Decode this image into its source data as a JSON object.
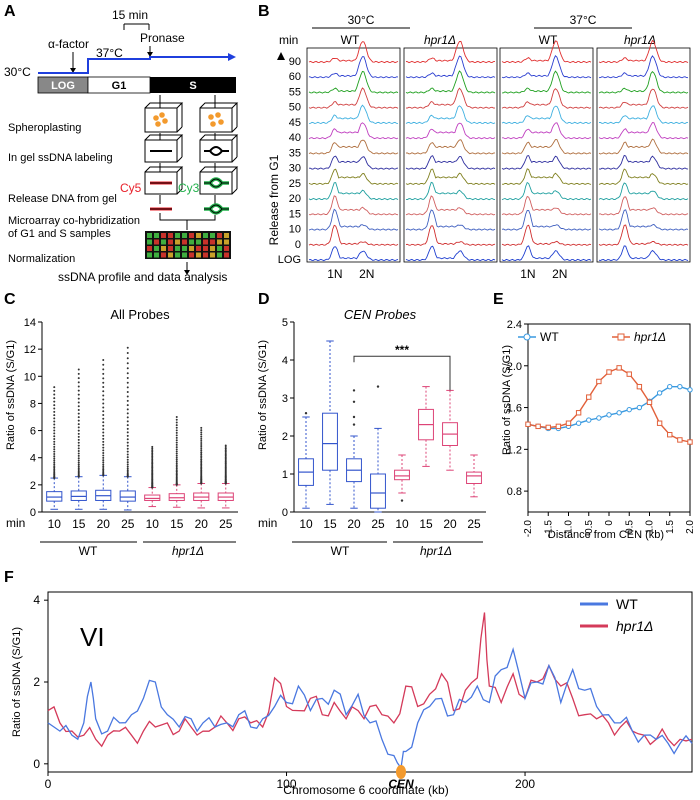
{
  "panelA": {
    "letter": "A",
    "time15": "15 min",
    "alpha": "α-factor",
    "pronase": "Pronase",
    "temp37": "37°C",
    "temp30": "30°C",
    "log": "LOG",
    "g1": "G1",
    "s": "S",
    "steps": [
      "Spheroplasting",
      "In gel ssDNA labeling",
      "Release DNA from gel",
      "Microarray co-hybridization",
      "of G1 and S samples",
      "Normalization"
    ],
    "cy5": "Cy5",
    "cy3": "Cy3",
    "final": "ssDNA profile and data analysis",
    "colors": {
      "cy5": "#e8202a",
      "cy3": "#22b14c",
      "blue": "#1f3fdd",
      "cells": "#f39a2d"
    }
  },
  "panelB": {
    "letter": "B",
    "temps": [
      "30°C",
      "37°C"
    ],
    "strains": [
      "WT",
      "hpr1Δ",
      "WT",
      "hpr1Δ"
    ],
    "min": "min",
    "release": "Release from G1",
    "rows": [
      "90",
      "60",
      "55",
      "50",
      "45",
      "40",
      "35",
      "30",
      "25",
      "20",
      "15",
      "10",
      "0",
      "LOG"
    ],
    "rowColors": [
      "#e03030",
      "#2c3fd0",
      "#20a020",
      "#d04040",
      "#3fb0e0",
      "#c040c0",
      "#b07040",
      "#2f2f9f",
      "#808020",
      "#20a0a0",
      "#d06060",
      "#4060c0",
      "#d03030",
      "#2040d0"
    ],
    "peaks": [
      "1N",
      "2N"
    ]
  },
  "chart_data": [
    {
      "type": "box",
      "panel": "C",
      "title": "All Probes",
      "ylabel": "Ratio of ssDNA (S/G1)",
      "ylim": [
        0,
        14
      ],
      "yticks": [
        0,
        2,
        4,
        6,
        8,
        10,
        12,
        14
      ],
      "xprefix": "min",
      "categories": [
        "10",
        "15",
        "20",
        "25",
        "10",
        "15",
        "20",
        "25"
      ],
      "groups": [
        "WT",
        "hpr1Δ"
      ],
      "colors": [
        "#3355cc",
        "#3355cc",
        "#3355cc",
        "#3355cc",
        "#dd4477",
        "#dd4477",
        "#dd4477",
        "#dd4477"
      ],
      "boxes": [
        {
          "q1": 0.8,
          "median": 1.1,
          "q3": 1.5,
          "lo": 0.2,
          "hi": 2.5,
          "outTop": 9.2
        },
        {
          "q1": 0.85,
          "median": 1.15,
          "q3": 1.55,
          "lo": 0.2,
          "hi": 2.6,
          "outTop": 10.5
        },
        {
          "q1": 0.85,
          "median": 1.2,
          "q3": 1.6,
          "lo": 0.2,
          "hi": 2.7,
          "outTop": 11.2
        },
        {
          "q1": 0.8,
          "median": 1.1,
          "q3": 1.55,
          "lo": 0.15,
          "hi": 2.6,
          "outTop": 12.1
        },
        {
          "q1": 0.85,
          "median": 1.0,
          "q3": 1.25,
          "lo": 0.4,
          "hi": 1.8,
          "outTop": 4.8
        },
        {
          "q1": 0.85,
          "median": 1.05,
          "q3": 1.35,
          "lo": 0.35,
          "hi": 2.0,
          "outTop": 7.0
        },
        {
          "q1": 0.85,
          "median": 1.1,
          "q3": 1.4,
          "lo": 0.3,
          "hi": 2.1,
          "outTop": 6.2
        },
        {
          "q1": 0.85,
          "median": 1.1,
          "q3": 1.4,
          "lo": 0.3,
          "hi": 2.1,
          "outTop": 4.9
        }
      ]
    },
    {
      "type": "box",
      "panel": "D",
      "title": "CEN Probes",
      "ylabel": "Ratio of ssDNA (S/G1)",
      "ylim": [
        0,
        5
      ],
      "yticks": [
        0,
        1,
        2,
        3,
        4,
        5
      ],
      "xprefix": "min",
      "categories": [
        "10",
        "15",
        "20",
        "25",
        "10",
        "15",
        "20",
        "25"
      ],
      "groups": [
        "WT",
        "hpr1Δ"
      ],
      "significance": "***",
      "colors": [
        "#3355cc",
        "#3355cc",
        "#3355cc",
        "#3355cc",
        "#dd4477",
        "#dd4477",
        "#dd4477",
        "#dd4477"
      ],
      "boxes": [
        {
          "q1": 0.7,
          "median": 1.05,
          "q3": 1.4,
          "lo": 0.1,
          "hi": 2.5,
          "out": [
            2.6
          ]
        },
        {
          "q1": 1.1,
          "median": 1.8,
          "q3": 2.6,
          "lo": 0.2,
          "hi": 4.5,
          "out": []
        },
        {
          "q1": 0.8,
          "median": 1.1,
          "q3": 1.4,
          "lo": 0.1,
          "hi": 2.0,
          "out": [
            2.3,
            2.5,
            2.9,
            3.2
          ]
        },
        {
          "q1": 0.1,
          "median": 0.5,
          "q3": 1.0,
          "lo": 0.0,
          "hi": 2.2,
          "out": [
            3.3
          ]
        },
        {
          "q1": 0.85,
          "median": 0.95,
          "q3": 1.1,
          "lo": 0.5,
          "hi": 1.5,
          "out": [
            0.3
          ]
        },
        {
          "q1": 1.9,
          "median": 2.3,
          "q3": 2.7,
          "lo": 1.2,
          "hi": 3.3,
          "out": []
        },
        {
          "q1": 1.75,
          "median": 2.05,
          "q3": 2.35,
          "lo": 1.1,
          "hi": 3.2,
          "out": []
        },
        {
          "q1": 0.75,
          "median": 0.95,
          "q3": 1.05,
          "lo": 0.4,
          "hi": 1.5,
          "out": []
        }
      ]
    },
    {
      "type": "line",
      "panel": "E",
      "ylabel": "Ratio of ssDNA (S/G1)",
      "xlabel": "Distance from CEN (kb)",
      "ylim": [
        0.6,
        2.4
      ],
      "yticks": [
        0.8,
        1.2,
        1.6,
        2.0,
        2.4
      ],
      "xlim": [
        -2.0,
        2.0
      ],
      "xticks": [
        "-2.0",
        "-1.5",
        "-1.0",
        "-0.5",
        "0",
        "0.5",
        "1.0",
        "1.5",
        "2.0"
      ],
      "x": [
        -2.0,
        -1.75,
        -1.5,
        -1.25,
        -1.0,
        -0.75,
        -0.5,
        -0.25,
        0,
        0.25,
        0.5,
        0.75,
        1.0,
        1.25,
        1.5,
        1.75,
        2.0
      ],
      "series": [
        {
          "name": "WT",
          "color": "#3a9ae0",
          "marker": "circle",
          "values": [
            1.44,
            1.42,
            1.4,
            1.4,
            1.42,
            1.45,
            1.48,
            1.5,
            1.53,
            1.55,
            1.58,
            1.6,
            1.66,
            1.74,
            1.8,
            1.8,
            1.77
          ]
        },
        {
          "name": "hpr1Δ",
          "color": "#e2603a",
          "marker": "square",
          "values": [
            1.44,
            1.42,
            1.41,
            1.42,
            1.45,
            1.55,
            1.7,
            1.85,
            1.94,
            1.98,
            1.92,
            1.8,
            1.65,
            1.45,
            1.34,
            1.29,
            1.27
          ]
        }
      ]
    },
    {
      "type": "line",
      "panel": "F",
      "label": "VI",
      "ylabel": "Ratio of ssDNA (S/G1)",
      "xlabel": "Chromosome 6 coordinate (kb)",
      "xlim": [
        0,
        270
      ],
      "ylim": [
        -0.2,
        4.2
      ],
      "xticks": [
        0,
        100,
        200
      ],
      "yticks": [
        0,
        2,
        4
      ],
      "centromere": {
        "x": 148,
        "label": "CEN"
      },
      "series": [
        {
          "name": "WT",
          "color": "#4a78e0",
          "x": [
            0,
            5,
            10,
            15,
            18,
            20,
            25,
            30,
            35,
            40,
            45,
            50,
            55,
            60,
            65,
            70,
            75,
            80,
            85,
            90,
            95,
            100,
            105,
            110,
            115,
            120,
            125,
            130,
            135,
            140,
            145,
            148,
            150,
            155,
            160,
            165,
            170,
            175,
            180,
            185,
            190,
            195,
            200,
            205,
            210,
            215,
            220,
            225,
            230,
            235,
            240,
            245,
            250,
            255,
            260,
            265,
            270
          ],
          "values": [
            1.0,
            0.8,
            0.7,
            1.0,
            2.0,
            1.1,
            0.8,
            1.0,
            1.2,
            1.6,
            2.0,
            1.2,
            0.9,
            1.1,
            1.0,
            0.9,
            1.0,
            1.2,
            0.9,
            1.1,
            1.4,
            1.5,
            1.9,
            1.3,
            1.6,
            1.8,
            1.2,
            1.7,
            1.0,
            0.6,
            0.2,
            -0.1,
            0.3,
            1.0,
            1.4,
            1.6,
            1.2,
            1.5,
            1.9,
            1.5,
            2.3,
            2.8,
            1.6,
            2.0,
            2.4,
            1.5,
            2.3,
            1.8,
            1.4,
            1.2,
            1.0,
            0.8,
            0.7,
            0.6,
            0.5,
            0.5,
            0.5
          ]
        },
        {
          "name": "hpr1Δ",
          "color": "#d43a5a",
          "x": [
            0,
            5,
            10,
            15,
            20,
            25,
            30,
            35,
            40,
            45,
            50,
            55,
            60,
            65,
            70,
            75,
            80,
            85,
            90,
            95,
            100,
            105,
            110,
            115,
            120,
            125,
            130,
            135,
            140,
            145,
            150,
            155,
            160,
            165,
            170,
            175,
            180,
            183,
            185,
            190,
            195,
            200,
            205,
            210,
            215,
            220,
            225,
            230,
            235,
            240,
            245,
            250,
            255,
            260,
            265,
            270
          ],
          "values": [
            1.3,
            1.0,
            0.8,
            0.7,
            0.6,
            0.7,
            0.8,
            0.7,
            0.8,
            0.9,
            1.0,
            0.8,
            0.9,
            0.8,
            0.9,
            1.0,
            1.1,
            1.0,
            0.9,
            2.1,
            1.4,
            1.3,
            1.6,
            1.2,
            1.5,
            1.1,
            1.3,
            1.4,
            1.2,
            1.0,
            1.9,
            1.4,
            1.7,
            2.2,
            1.3,
            1.8,
            2.1,
            3.7,
            1.9,
            1.5,
            2.2,
            1.6,
            2.0,
            2.4,
            1.9,
            1.6,
            1.2,
            1.1,
            1.0,
            0.9,
            0.8,
            0.7,
            0.6,
            0.6,
            0.6,
            0.6
          ]
        }
      ]
    }
  ]
}
